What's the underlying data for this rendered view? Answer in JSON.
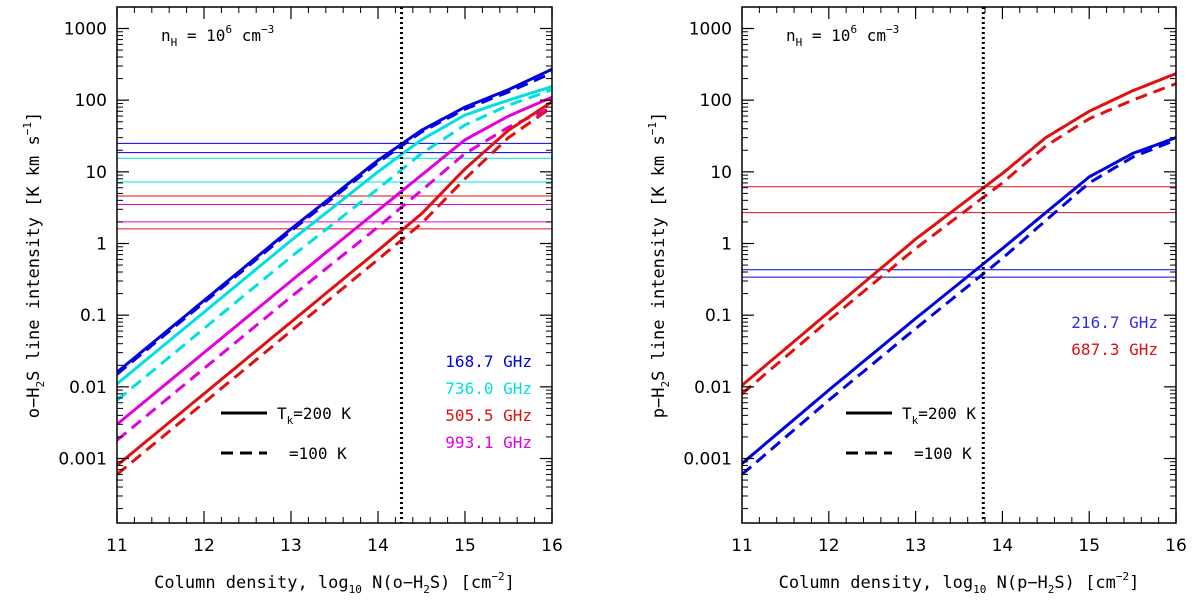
{
  "chart_data": [
    {
      "type": "line",
      "panel": "left",
      "ylabel_prefix": "o−H",
      "ylabel_suffix": "S line intensity  [K km s",
      "ylabel_tail": "]",
      "xlabel_prefix": "Column density, log",
      "xlabel_mid": " N(o−H",
      "xlabel_mid2": "S)  [cm",
      "xlabel_tail": "]",
      "annotation": "= 10",
      "annotation_unit": "cm",
      "annotation_exp": "6",
      "annotation_neg": "−3",
      "nh_label": "n",
      "nh_sub": "H",
      "xlim": [
        11,
        16
      ],
      "ylim_log10": [
        -3.9,
        3.3
      ],
      "x_ticks": [
        "11",
        "12",
        "13",
        "14",
        "15",
        "16"
      ],
      "y_ticks": [
        "0.001",
        "0.01",
        "0.1",
        "1",
        "10",
        "100",
        "1000"
      ],
      "vline_x": 14.27,
      "legend_style": [
        {
          "style": "solid",
          "label": "T",
          "sub": "k",
          "tail": "=200 K"
        },
        {
          "style": "dashed",
          "label": "=100 K",
          "sub": "",
          "tail": ""
        }
      ],
      "freq_legend": [
        {
          "label": "168.7 GHz",
          "color": "#0000e0"
        },
        {
          "label": "736.0 GHz",
          "color": "#00e0e0"
        },
        {
          "label": "505.5 GHz",
          "color": "#e01010"
        },
        {
          "label": "993.1 GHz",
          "color": "#e000e0"
        }
      ],
      "hlines": [
        {
          "y": 25,
          "color": "#0000e0"
        },
        {
          "y": 18.5,
          "color": "#0000e0"
        },
        {
          "y": 15.5,
          "color": "#00e0e0"
        },
        {
          "y": 7.2,
          "color": "#00e0e0"
        },
        {
          "y": 4.6,
          "color": "#e01010"
        },
        {
          "y": 3.5,
          "color": "#e000e0"
        },
        {
          "y": 2.0,
          "color": "#e000e0"
        },
        {
          "y": 1.6,
          "color": "#e01010"
        }
      ],
      "series": [
        {
          "name": "168.7 GHz 200 K",
          "color": "#0000e0",
          "dash": false,
          "x": [
            11,
            12,
            13,
            14,
            14.5,
            15,
            15.5,
            16
          ],
          "y": [
            0.016,
            0.16,
            1.6,
            14.5,
            38,
            80,
            140,
            270
          ]
        },
        {
          "name": "168.7 GHz 100 K",
          "color": "#0000e0",
          "dash": true,
          "x": [
            11,
            12,
            13,
            14,
            14.5,
            15,
            15.5,
            16
          ],
          "y": [
            0.015,
            0.15,
            1.5,
            13.5,
            36,
            75,
            130,
            240
          ]
        },
        {
          "name": "736.0 GHz 200 K",
          "color": "#00e0e0",
          "dash": false,
          "x": [
            11,
            12,
            13,
            14,
            14.5,
            15,
            15.5,
            16
          ],
          "y": [
            0.011,
            0.11,
            1.1,
            10,
            28,
            62,
            100,
            155
          ]
        },
        {
          "name": "736.0 GHz 100 K",
          "color": "#00e0e0",
          "dash": true,
          "x": [
            11,
            12,
            13,
            14,
            14.5,
            15,
            15.5,
            16
          ],
          "y": [
            0.0065,
            0.065,
            0.65,
            5.8,
            18,
            45,
            85,
            140
          ]
        },
        {
          "name": "993.1 GHz 200 K",
          "color": "#e000e0",
          "dash": false,
          "x": [
            11,
            12,
            13,
            14,
            14.5,
            15,
            15.5,
            16
          ],
          "y": [
            0.003,
            0.03,
            0.3,
            2.9,
            9,
            28,
            60,
            110
          ]
        },
        {
          "name": "993.1 GHz 100 K",
          "color": "#e000e0",
          "dash": true,
          "x": [
            11,
            12,
            13,
            14,
            14.5,
            15,
            15.5,
            16
          ],
          "y": [
            0.0018,
            0.018,
            0.18,
            1.7,
            5.5,
            18,
            42,
            80
          ]
        },
        {
          "name": "505.5 GHz 200 K",
          "color": "#e01010",
          "dash": false,
          "x": [
            11,
            12,
            13,
            14,
            14.5,
            15,
            15.5,
            16
          ],
          "y": [
            0.0008,
            0.008,
            0.08,
            0.8,
            2.6,
            11,
            38,
            95
          ]
        },
        {
          "name": "505.5 GHz 100 K",
          "color": "#e01010",
          "dash": true,
          "x": [
            11,
            12,
            13,
            14,
            14.5,
            15,
            15.5,
            16
          ],
          "y": [
            0.0006,
            0.006,
            0.06,
            0.6,
            1.9,
            8,
            30,
            80
          ]
        }
      ]
    },
    {
      "type": "line",
      "panel": "right",
      "ylabel_prefix": "p−H",
      "ylabel_suffix": "S line intensity  [K km s",
      "ylabel_tail": "]",
      "xlabel_prefix": "Column density, log",
      "xlabel_mid": " N(p−H",
      "xlabel_mid2": "S)  [cm",
      "xlabel_tail": "]",
      "annotation": "= 10",
      "annotation_unit": "cm",
      "annotation_exp": "6",
      "annotation_neg": "−3",
      "nh_label": "n",
      "nh_sub": "H",
      "xlim": [
        11,
        16
      ],
      "ylim_log10": [
        -3.9,
        3.3
      ],
      "x_ticks": [
        "11",
        "12",
        "13",
        "14",
        "15",
        "16"
      ],
      "y_ticks": [
        "0.001",
        "0.01",
        "0.1",
        "1",
        "10",
        "100",
        "1000"
      ],
      "vline_x": 13.78,
      "legend_style": [
        {
          "style": "solid",
          "label": "T",
          "sub": "k",
          "tail": "=200 K"
        },
        {
          "style": "dashed",
          "label": "=100 K",
          "sub": "",
          "tail": ""
        }
      ],
      "freq_legend": [
        {
          "label": "216.7 GHz",
          "color": "#3030e0"
        },
        {
          "label": "687.3 GHz",
          "color": "#e01010"
        }
      ],
      "hlines": [
        {
          "y": 6.2,
          "color": "#e01010"
        },
        {
          "y": 2.7,
          "color": "#e01010"
        },
        {
          "y": 0.43,
          "color": "#0000e0"
        },
        {
          "y": 0.34,
          "color": "#0000e0"
        }
      ],
      "series": [
        {
          "name": "687.3 GHz 200 K",
          "color": "#e01010",
          "dash": false,
          "x": [
            11,
            12,
            13,
            14,
            14.5,
            15,
            15.5,
            16
          ],
          "y": [
            0.0105,
            0.11,
            1.15,
            9.5,
            30,
            70,
            135,
            235
          ]
        },
        {
          "name": "687.3 GHz 100 K",
          "color": "#e01010",
          "dash": true,
          "x": [
            11,
            12,
            13,
            14,
            14.5,
            15,
            15.5,
            16
          ],
          "y": [
            0.008,
            0.085,
            0.85,
            7,
            23,
            55,
            100,
            170
          ]
        },
        {
          "name": "216.7 GHz 200 K",
          "color": "#0000e0",
          "dash": false,
          "x": [
            11,
            12,
            13,
            14,
            14.5,
            15,
            15.5,
            16
          ],
          "y": [
            0.00085,
            0.009,
            0.09,
            0.85,
            2.7,
            8.5,
            18,
            30
          ]
        },
        {
          "name": "216.7 GHz 100 K",
          "color": "#0000e0",
          "dash": true,
          "x": [
            11,
            12,
            13,
            14,
            14.5,
            15,
            15.5,
            16
          ],
          "y": [
            0.0006,
            0.0065,
            0.065,
            0.62,
            2.1,
            7,
            16,
            28
          ]
        }
      ]
    }
  ]
}
